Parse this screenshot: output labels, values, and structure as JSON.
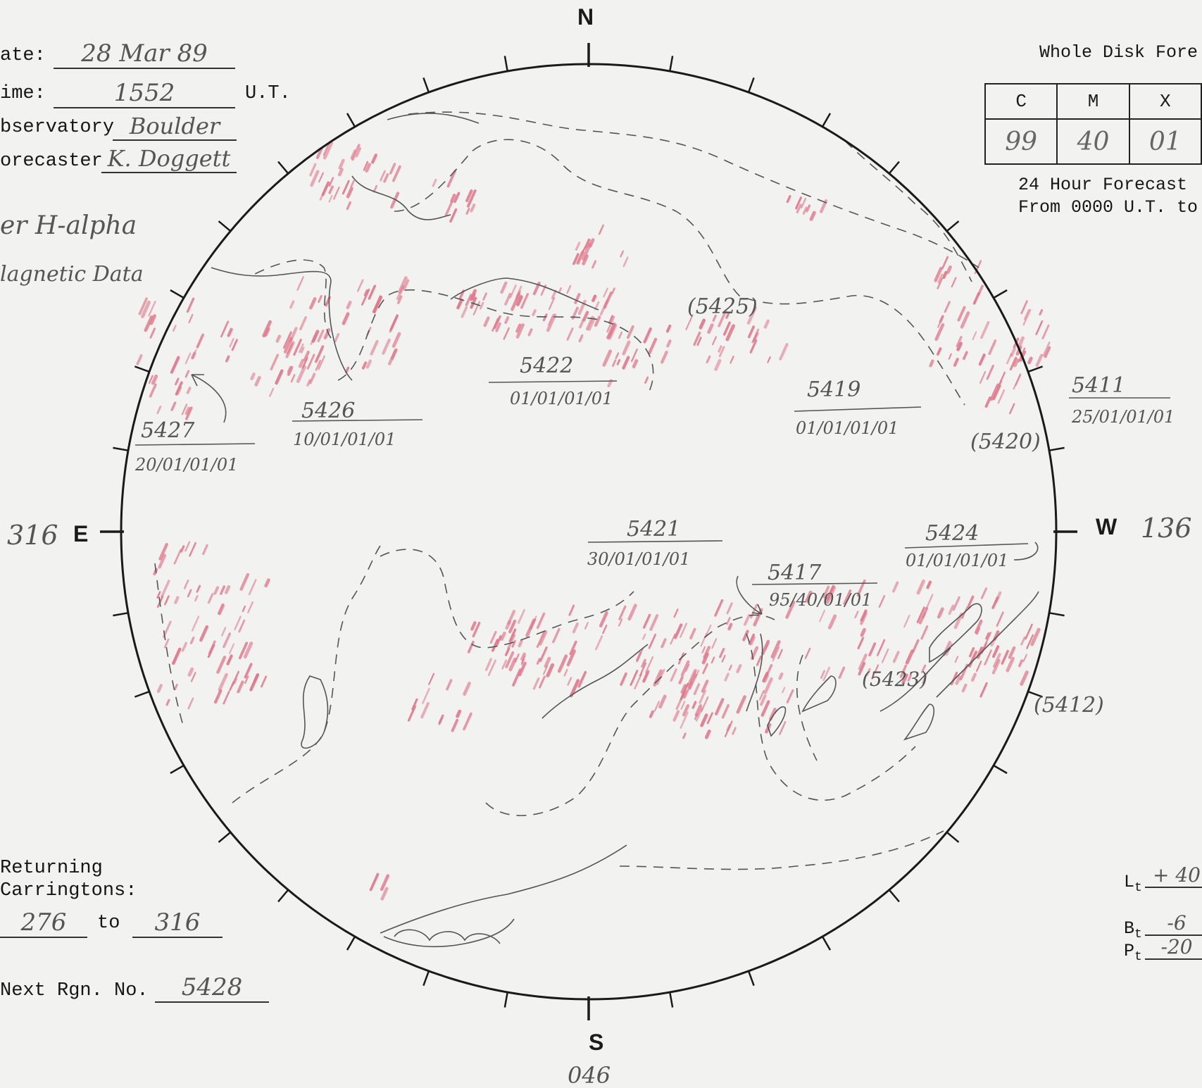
{
  "header": {
    "date_label": "ate:",
    "date_value": "28 Mar 89",
    "time_label": "ime:",
    "time_value": "1552",
    "time_unit": "U.T.",
    "observatory_label": "bservatory",
    "observatory_value": "Boulder",
    "forecaster_label": "orecaster",
    "forecaster_value": "K. Doggett",
    "note_line1": "er H-alpha",
    "note_line2": "lagnetic Data"
  },
  "forecast": {
    "title": "Whole Disk Fore",
    "columns": [
      "C",
      "M",
      "X"
    ],
    "values": [
      "99",
      "40",
      "01"
    ],
    "footer_line1": "24 Hour Forecast",
    "footer_line2": "From 0000 U.T. to"
  },
  "compass": {
    "north": "N",
    "south": "S",
    "east": "E",
    "west": "W",
    "east_longitude": "316",
    "west_longitude": "136",
    "south_longitude": "046"
  },
  "returning": {
    "label_line1": "Returning",
    "label_line2": "Carringtons:",
    "from": "276",
    "to_label": "to",
    "to": "316"
  },
  "next_region": {
    "label": "Next Rgn. No.",
    "value": "5428"
  },
  "orientation": {
    "lt_label": "L",
    "lt_value": "+ 40",
    "bt_label": "B",
    "bt_value": "-6",
    "pt_label": "P",
    "pt_value": "-20",
    "subscript": "t"
  },
  "regions": [
    {
      "number": "5427",
      "code": "20/01/01/01"
    },
    {
      "number": "5426",
      "code": "10/01/01/01"
    },
    {
      "number": "5422",
      "code": "01/01/01/01"
    },
    {
      "number": "5419",
      "code": "01/01/01/01"
    },
    {
      "number": "5411",
      "code": "25/01/01/01"
    },
    {
      "number": "5421",
      "code": "30/01/01/01"
    },
    {
      "number": "5424",
      "code": "01/01/01/01"
    },
    {
      "number": "5417",
      "code": "95/40/01/01"
    }
  ],
  "bracketed_regions": [
    "(5425)",
    "(5420)",
    "(5423)",
    "(5412)"
  ],
  "colors": {
    "plage": "#e07a8c",
    "ink": "#222222",
    "pencil": "#555555",
    "paper": "#f2f2f1"
  }
}
